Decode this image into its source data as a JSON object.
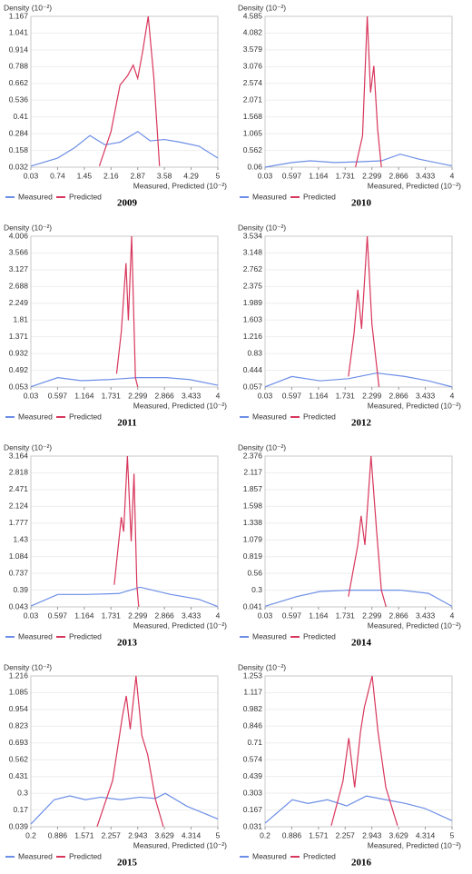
{
  "chart_data": [
    {
      "type": "line",
      "y_label": "Density (10⁻²)",
      "x_label": "Measured, Predicted (10⁻²)",
      "caption": "2009",
      "xlim": [
        0.03,
        5
      ],
      "xticks": [
        0.03,
        0.74,
        1.45,
        2.16,
        2.87,
        3.58,
        4.29,
        5
      ],
      "ylim": [
        0.032,
        1.167
      ],
      "yticks": [
        0.032,
        0.158,
        0.284,
        0.41,
        0.536,
        0.662,
        0.788,
        0.914,
        1.041,
        1.167
      ],
      "series": [
        {
          "name": "Measured",
          "color": "#6c8ee6",
          "x": [
            0.03,
            0.74,
            1.2,
            1.6,
            2.0,
            2.4,
            2.87,
            3.2,
            3.58,
            4.0,
            4.5,
            5
          ],
          "values": [
            0.04,
            0.1,
            0.18,
            0.27,
            0.2,
            0.22,
            0.3,
            0.23,
            0.24,
            0.22,
            0.19,
            0.1
          ]
        },
        {
          "name": "Predicted",
          "color": "#d8365c",
          "x": [
            1.85,
            2.16,
            2.4,
            2.6,
            2.75,
            2.87,
            3.0,
            3.15,
            3.3,
            3.45
          ],
          "values": [
            0.04,
            0.3,
            0.65,
            0.72,
            0.8,
            0.7,
            0.9,
            1.167,
            0.7,
            0.04
          ]
        }
      ]
    },
    {
      "type": "line",
      "y_label": "Density (10⁻²)",
      "x_label": "Measured, Predicted (10⁻²)",
      "caption": "2010",
      "xlim": [
        0.03,
        4
      ],
      "xticks": [
        0.03,
        0.597,
        1.164,
        1.731,
        2.299,
        2.866,
        3.433,
        4
      ],
      "ylim": [
        0.06,
        4.585
      ],
      "yticks": [
        0.06,
        0.562,
        1.065,
        1.568,
        2.071,
        2.574,
        3.076,
        3.579,
        4.082,
        4.585
      ],
      "series": [
        {
          "name": "Measured",
          "color": "#6c8ee6",
          "x": [
            0.03,
            0.6,
            1.0,
            1.5,
            2.0,
            2.5,
            2.9,
            3.3,
            4
          ],
          "values": [
            0.06,
            0.2,
            0.25,
            0.2,
            0.22,
            0.25,
            0.45,
            0.3,
            0.1
          ]
        },
        {
          "name": "Predicted",
          "color": "#d8365c",
          "x": [
            1.95,
            2.1,
            2.2,
            2.27,
            2.34,
            2.42,
            2.5
          ],
          "values": [
            0.06,
            1.0,
            4.585,
            2.3,
            3.1,
            1.2,
            0.06
          ]
        }
      ]
    },
    {
      "type": "line",
      "y_label": "Density (10⁻²)",
      "x_label": "Measured, Predicted (10⁻²)",
      "caption": "2011",
      "xlim": [
        0.03,
        4
      ],
      "xticks": [
        0.03,
        0.597,
        1.164,
        1.731,
        2.299,
        2.866,
        3.433,
        4
      ],
      "ylim": [
        0.053,
        4.006
      ],
      "yticks": [
        0.053,
        0.492,
        0.932,
        1.371,
        1.81,
        2.249,
        2.688,
        3.127,
        3.566,
        4.006
      ],
      "series": [
        {
          "name": "Measured",
          "color": "#6c8ee6",
          "x": [
            0.03,
            0.6,
            1.1,
            1.7,
            2.3,
            2.9,
            3.4,
            4
          ],
          "values": [
            0.06,
            0.3,
            0.22,
            0.25,
            0.3,
            0.3,
            0.25,
            0.1
          ]
        },
        {
          "name": "Predicted",
          "color": "#d8365c",
          "x": [
            1.85,
            1.95,
            2.05,
            2.1,
            2.17,
            2.25,
            2.3
          ],
          "values": [
            0.4,
            1.5,
            3.3,
            1.8,
            4.006,
            0.3,
            0.053
          ]
        }
      ]
    },
    {
      "type": "line",
      "y_label": "Density (10⁻²)",
      "x_label": "Measured, Predicted (10⁻²)",
      "caption": "2012",
      "xlim": [
        0.03,
        4
      ],
      "xticks": [
        0.03,
        0.597,
        1.164,
        1.731,
        2.299,
        2.866,
        3.433,
        4
      ],
      "ylim": [
        0.057,
        3.534
      ],
      "yticks": [
        0.057,
        0.444,
        0.83,
        1.216,
        1.603,
        1.989,
        2.375,
        2.762,
        3.148,
        3.534
      ],
      "series": [
        {
          "name": "Measured",
          "color": "#6c8ee6",
          "x": [
            0.03,
            0.6,
            1.2,
            1.8,
            2.4,
            3.0,
            3.5,
            4
          ],
          "values": [
            0.06,
            0.3,
            0.2,
            0.25,
            0.38,
            0.3,
            0.2,
            0.06
          ]
        },
        {
          "name": "Predicted",
          "color": "#d8365c",
          "x": [
            1.8,
            1.92,
            2.0,
            2.08,
            2.2,
            2.3,
            2.45
          ],
          "values": [
            0.3,
            1.3,
            2.3,
            1.4,
            3.534,
            1.5,
            0.057
          ]
        }
      ]
    },
    {
      "type": "line",
      "y_label": "Density (10⁻²)",
      "x_label": "Measured, Predicted (10⁻²)",
      "caption": "2013",
      "xlim": [
        0.03,
        4
      ],
      "xticks": [
        0.03,
        0.597,
        1.164,
        1.731,
        2.299,
        2.866,
        3.433,
        4
      ],
      "ylim": [
        0.043,
        3.164
      ],
      "yticks": [
        0.043,
        0.39,
        0.737,
        1.084,
        1.43,
        1.777,
        2.124,
        2.471,
        2.818,
        3.164
      ],
      "series": [
        {
          "name": "Measured",
          "color": "#6c8ee6",
          "x": [
            0.03,
            0.6,
            1.2,
            1.9,
            2.35,
            3.0,
            3.6,
            4
          ],
          "values": [
            0.06,
            0.3,
            0.3,
            0.32,
            0.45,
            0.3,
            0.2,
            0.05
          ]
        },
        {
          "name": "Predicted",
          "color": "#d8365c",
          "x": [
            1.8,
            1.95,
            2.0,
            2.08,
            2.16,
            2.22,
            2.28,
            2.32
          ],
          "values": [
            0.5,
            1.9,
            1.6,
            3.164,
            1.4,
            2.8,
            0.5,
            0.043
          ]
        }
      ]
    },
    {
      "type": "line",
      "y_label": "Density (10⁻²)",
      "x_label": "Measured, Predicted (10⁻²)",
      "caption": "2014",
      "xlim": [
        0.03,
        4
      ],
      "xticks": [
        0.03,
        0.597,
        1.164,
        1.731,
        2.299,
        2.866,
        3.433,
        4
      ],
      "ylim": [
        0.041,
        2.376
      ],
      "yticks": [
        0.041,
        0.3,
        0.56,
        0.819,
        1.079,
        1.338,
        1.598,
        1.857,
        2.117,
        2.376
      ],
      "series": [
        {
          "name": "Measured",
          "color": "#6c8ee6",
          "x": [
            0.03,
            0.7,
            1.2,
            1.8,
            2.35,
            2.9,
            3.5,
            4
          ],
          "values": [
            0.05,
            0.2,
            0.28,
            0.3,
            0.3,
            0.3,
            0.25,
            0.05
          ]
        },
        {
          "name": "Predicted",
          "color": "#d8365c",
          "x": [
            1.8,
            2.0,
            2.07,
            2.15,
            2.28,
            2.4,
            2.5,
            2.6
          ],
          "values": [
            0.2,
            1.0,
            1.45,
            1.0,
            2.376,
            1.2,
            0.3,
            0.041
          ]
        }
      ]
    },
    {
      "type": "line",
      "y_label": "Density (10⁻²)",
      "x_label": "Measured, Predicted (10⁻²)",
      "caption": "2015",
      "xlim": [
        0.2,
        5
      ],
      "xticks": [
        0.2,
        0.886,
        1.571,
        2.257,
        2.943,
        3.629,
        4.314,
        5
      ],
      "ylim": [
        0.039,
        1.216
      ],
      "yticks": [
        0.039,
        0.17,
        0.3,
        0.431,
        0.562,
        0.693,
        0.823,
        0.954,
        1.085,
        1.216
      ],
      "series": [
        {
          "name": "Measured",
          "color": "#6c8ee6",
          "x": [
            0.2,
            0.8,
            1.2,
            1.6,
            2.0,
            2.5,
            3.0,
            3.4,
            3.65,
            4.2,
            5
          ],
          "values": [
            0.06,
            0.25,
            0.28,
            0.25,
            0.27,
            0.25,
            0.27,
            0.26,
            0.3,
            0.2,
            0.1
          ]
        },
        {
          "name": "Predicted",
          "color": "#d8365c",
          "x": [
            1.9,
            2.3,
            2.55,
            2.65,
            2.75,
            2.9,
            3.05,
            3.2,
            3.4,
            3.6
          ],
          "values": [
            0.04,
            0.4,
            0.9,
            1.06,
            0.8,
            1.216,
            0.75,
            0.6,
            0.25,
            0.04
          ]
        }
      ]
    },
    {
      "type": "line",
      "y_label": "Density (10⁻²)",
      "x_label": "Measured, Predicted (10⁻²)",
      "caption": "2016",
      "xlim": [
        0.2,
        5
      ],
      "xticks": [
        0.2,
        0.886,
        1.571,
        2.257,
        2.943,
        3.629,
        4.314,
        5
      ],
      "ylim": [
        0.031,
        1.253
      ],
      "yticks": [
        0.031,
        0.167,
        0.303,
        0.439,
        0.574,
        0.71,
        0.846,
        0.982,
        1.117,
        1.253
      ],
      "series": [
        {
          "name": "Measured",
          "color": "#6c8ee6",
          "x": [
            0.2,
            0.9,
            1.3,
            1.8,
            2.3,
            2.8,
            3.3,
            3.8,
            4.3,
            5
          ],
          "values": [
            0.06,
            0.25,
            0.22,
            0.25,
            0.2,
            0.28,
            0.25,
            0.22,
            0.18,
            0.08
          ]
        },
        {
          "name": "Predicted",
          "color": "#d8365c",
          "x": [
            1.9,
            2.2,
            2.35,
            2.5,
            2.65,
            2.75,
            2.95,
            3.1,
            3.3,
            3.6
          ],
          "values": [
            0.04,
            0.4,
            0.75,
            0.35,
            0.8,
            1.0,
            1.253,
            0.8,
            0.35,
            0.04
          ]
        }
      ]
    }
  ]
}
